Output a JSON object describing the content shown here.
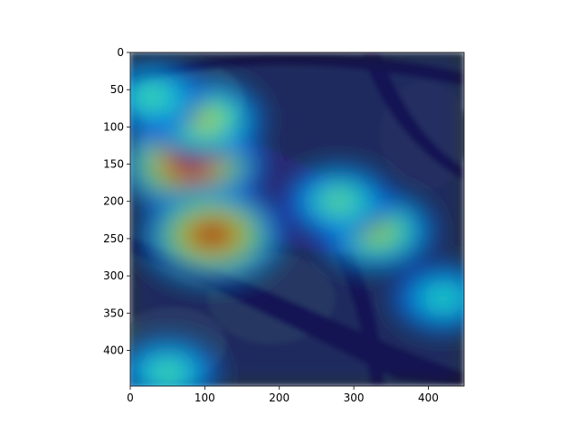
{
  "chart_data": {
    "type": "heatmap",
    "title": "",
    "xlabel": "",
    "ylabel": "",
    "xlim": [
      0,
      448
    ],
    "ylim": [
      448,
      0
    ],
    "xticks": [
      0,
      100,
      200,
      300,
      400
    ],
    "yticks": [
      0,
      50,
      100,
      150,
      200,
      250,
      300,
      350,
      400
    ],
    "colormap": "jet",
    "background_image": "bird-on-branch-photo",
    "grid": false,
    "legend": "none",
    "hotspots": [
      {
        "x": 80,
        "y": 150,
        "intensity": 1.0
      },
      {
        "x": 110,
        "y": 245,
        "intensity": 0.95
      },
      {
        "x": 100,
        "y": 90,
        "intensity": 0.55
      },
      {
        "x": 330,
        "y": 240,
        "intensity": 0.55
      },
      {
        "x": 280,
        "y": 200,
        "intensity": 0.4
      },
      {
        "x": 30,
        "y": 60,
        "intensity": 0.35
      },
      {
        "x": 420,
        "y": 330,
        "intensity": 0.3
      },
      {
        "x": 50,
        "y": 430,
        "intensity": 0.35
      }
    ]
  }
}
